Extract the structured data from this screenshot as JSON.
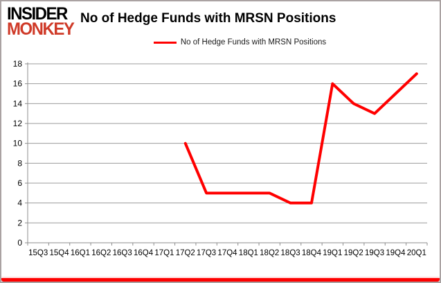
{
  "brand": {
    "line1": "INSIDER",
    "line2": "MONKEY",
    "line2_color": "#cf3a28"
  },
  "header": {
    "title": "No of Hedge Funds with MRSN Positions"
  },
  "legend": {
    "label": "No of Hedge Funds with MRSN Positions",
    "swatch_color": "#ff0000"
  },
  "chart_data": {
    "type": "line",
    "title": "No of Hedge Funds with MRSN Positions",
    "categories": [
      "15Q3",
      "15Q4",
      "16Q1",
      "16Q2",
      "16Q3",
      "16Q4",
      "17Q1",
      "17Q2",
      "17Q3",
      "17Q4",
      "18Q1",
      "18Q2",
      "18Q3",
      "18Q4",
      "19Q1",
      "19Q2",
      "19Q3",
      "19Q4",
      "20Q1"
    ],
    "series": [
      {
        "name": "No of Hedge Funds with MRSN Positions",
        "color": "#ff0000",
        "values": [
          null,
          null,
          null,
          null,
          null,
          null,
          null,
          10,
          5,
          5,
          5,
          5,
          4,
          4,
          16,
          14,
          13,
          15,
          17
        ]
      }
    ],
    "xlabel": "",
    "ylabel": "",
    "ylim": [
      0,
      18
    ],
    "y_ticks": [
      0,
      2,
      4,
      6,
      8,
      10,
      12,
      14,
      16,
      18
    ],
    "grid": true,
    "legend_position": "top-center"
  },
  "colors": {
    "line": "#ff0000",
    "grid": "#9b9b9b",
    "axis": "#8c8c8c",
    "text": "#000000",
    "bottom_bar": "#fe0000",
    "background": "#ffffff"
  }
}
